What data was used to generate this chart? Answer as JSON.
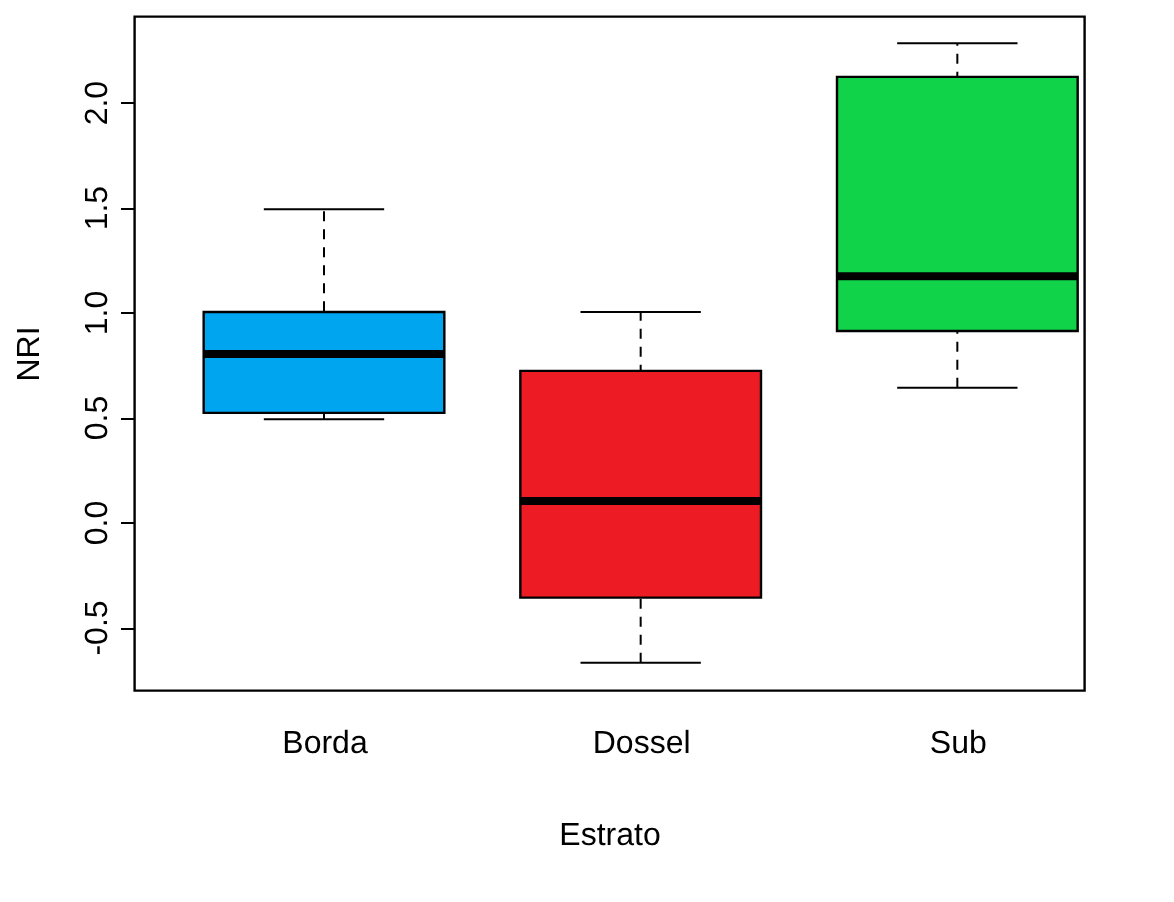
{
  "chart_data": {
    "type": "box",
    "xlabel": "Estrato",
    "ylabel": "NRI",
    "categories": [
      "Borda",
      "Dossel",
      "Sub"
    ],
    "boxes": [
      {
        "low": 0.49,
        "q1": 0.52,
        "median": 0.8,
        "q3": 1.0,
        "high": 1.49
      },
      {
        "low": -0.67,
        "q1": -0.36,
        "median": 0.1,
        "q3": 0.72,
        "high": 1.0
      },
      {
        "low": 0.64,
        "q1": 0.91,
        "median": 1.17,
        "q3": 2.12,
        "high": 2.28
      }
    ],
    "colors": [
      "#00a5f0",
      "#ed1c24",
      "#11d34a"
    ],
    "ylim": [
      -0.8,
      2.41
    ],
    "yticks": [
      {
        "value": -0.5,
        "label": "-0.5"
      },
      {
        "value": 0,
        "label": "0.0"
      },
      {
        "value": 0.5,
        "label": "0.5"
      },
      {
        "value": 1,
        "label": "1.0"
      },
      {
        "value": 1.5,
        "label": "1.5"
      },
      {
        "value": 2,
        "label": "2.0"
      }
    ],
    "grid": false
  }
}
